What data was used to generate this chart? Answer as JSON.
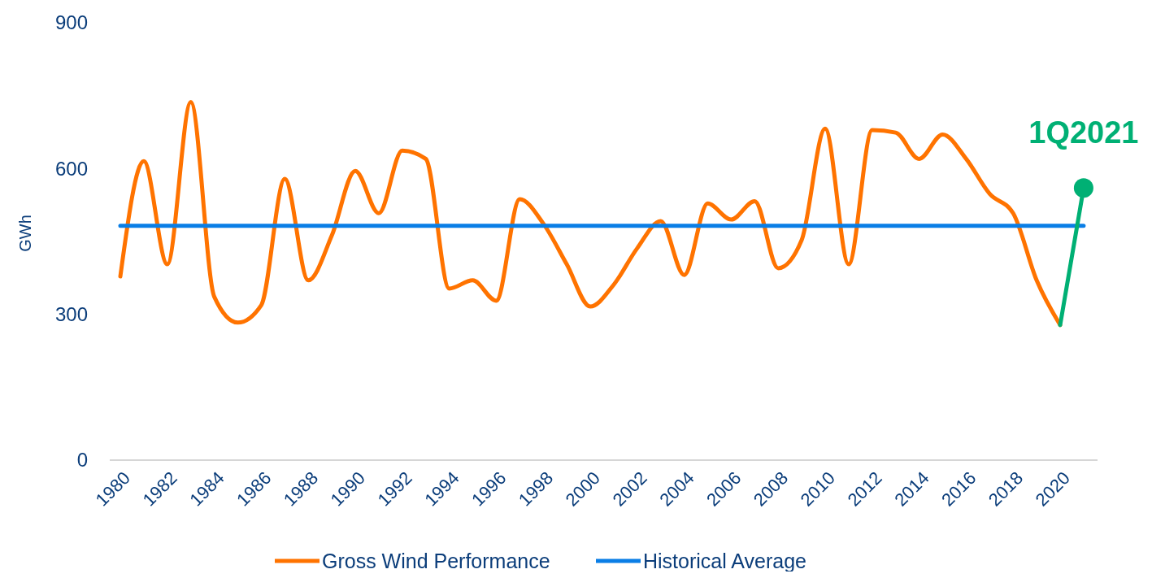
{
  "chart_data": {
    "type": "line",
    "ylabel": "GWh",
    "categories": [
      "1980",
      null,
      "1982",
      null,
      "1984",
      null,
      "1986",
      null,
      "1988",
      null,
      "1990",
      null,
      "1992",
      null,
      "1994",
      null,
      "1996",
      null,
      "1998",
      null,
      "2000",
      null,
      "2002",
      null,
      "2004",
      null,
      "2006",
      null,
      "2008",
      null,
      "2010",
      null,
      "2012",
      null,
      "2014",
      null,
      "2016",
      null,
      "2018",
      null,
      "2020",
      null
    ],
    "ylim": [
      0,
      900
    ],
    "yticks": [
      0,
      300,
      600,
      900
    ],
    "grid": false,
    "legend": "bottom",
    "series": [
      {
        "name": "Gross Wind Performance",
        "color": "#ff7300",
        "values": [
          378,
          615,
          403,
          737,
          336,
          283,
          319,
          579,
          370,
          462,
          595,
          508,
          637,
          620,
          353,
          370,
          328,
          537,
          487,
          403,
          316,
          361,
          436,
          492,
          381,
          528,
          495,
          533,
          395,
          453,
          682,
          403,
          679,
          674,
          620,
          670,
          620,
          548,
          508,
          370,
          278,
          null
        ]
      },
      {
        "name": "Historical Average",
        "color": "#0a7ee6",
        "values": [
          482,
          482,
          482,
          482,
          482,
          482,
          482,
          482,
          482,
          482,
          482,
          482,
          482,
          482,
          482,
          482,
          482,
          482,
          482,
          482,
          482,
          482,
          482,
          482,
          482,
          482,
          482,
          482,
          482,
          482,
          482,
          482,
          482,
          482,
          482,
          482,
          482,
          482,
          482,
          482,
          482,
          482
        ]
      },
      {
        "color": "#00b074",
        "values": [
          null,
          null,
          null,
          null,
          null,
          null,
          null,
          null,
          null,
          null,
          null,
          null,
          null,
          null,
          null,
          null,
          null,
          null,
          null,
          null,
          null,
          null,
          null,
          null,
          null,
          null,
          null,
          null,
          null,
          null,
          null,
          null,
          null,
          null,
          null,
          null,
          null,
          null,
          null,
          null,
          278,
          560
        ]
      },
      {
        "type": "scatter",
        "color": "#00b074",
        "values": [
          null,
          null,
          null,
          null,
          null,
          null,
          null,
          null,
          null,
          null,
          null,
          null,
          null,
          null,
          null,
          null,
          null,
          null,
          null,
          null,
          null,
          null,
          null,
          null,
          null,
          null,
          null,
          null,
          null,
          null,
          null,
          null,
          null,
          null,
          null,
          null,
          null,
          null,
          null,
          null,
          null,
          560
        ]
      }
    ],
    "annotations": [
      {
        "text": "1Q2021",
        "y": 560
      }
    ]
  }
}
